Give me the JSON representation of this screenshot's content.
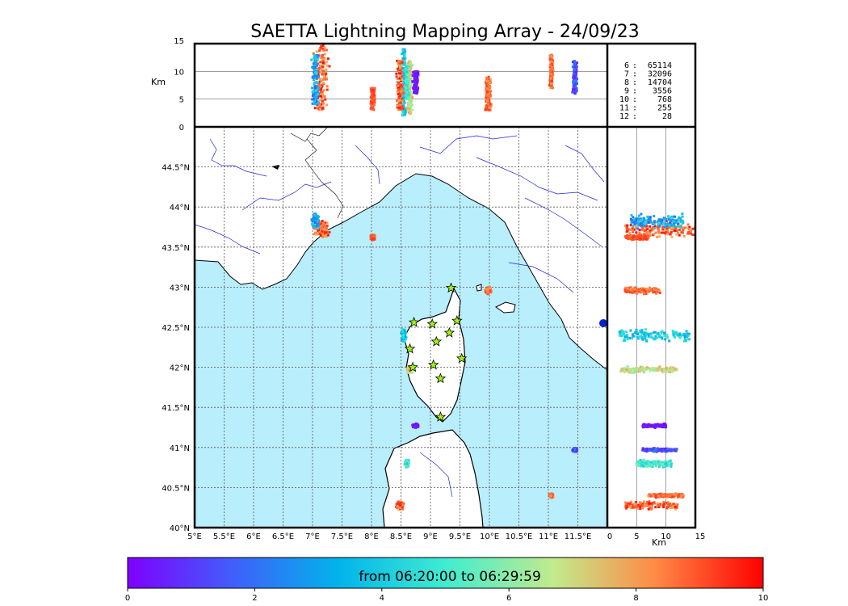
{
  "chart_data": {
    "type": "scatter",
    "title": "SAETTA Lightning Mapping Array - 24/09/23",
    "colorbar": {
      "label": "from 06:20:00 to 06:29:59",
      "ticks": [
        "0",
        "2",
        "4",
        "6",
        "8",
        "10"
      ],
      "range": [
        0,
        10
      ]
    },
    "altitude_panel": {
      "ylabel": "Km",
      "yticks": [
        "0",
        "5",
        "10",
        "15"
      ],
      "ylim": [
        0,
        15
      ]
    },
    "latitude_panel": {
      "xlabel": "Km",
      "xticks": [
        "0",
        "5",
        "10",
        "15"
      ],
      "xlim": [
        0,
        15
      ]
    },
    "map": {
      "xticks": [
        "5°E",
        "5.5°E",
        "6°E",
        "6.5°E",
        "7°E",
        "7.5°E",
        "8°E",
        "8.5°E",
        "9°E",
        "9.5°E",
        "10°E",
        "10.5°E",
        "11°E",
        "11.5°E"
      ],
      "yticks": [
        "40°N",
        "40.5°N",
        "41°N",
        "41.5°N",
        "42°N",
        "42.5°N",
        "43°N",
        "43.5°N",
        "44°N",
        "44.5°N"
      ],
      "lon_range": [
        5,
        12
      ],
      "lat_range": [
        40,
        45
      ],
      "grid": true
    },
    "station_counts": [
      {
        "stations": "6",
        "count": "65114",
        "highlight": false
      },
      {
        "stations": "7",
        "count": "32096",
        "highlight": true
      },
      {
        "stations": "8",
        "count": "14704",
        "highlight": false
      },
      {
        "stations": "9",
        "count": "3556",
        "highlight": false
      },
      {
        "stations": "10",
        "count": "768",
        "highlight": false
      },
      {
        "stations": "11",
        "count": "255",
        "highlight": false
      },
      {
        "stations": "12",
        "count": "28",
        "highlight": false
      }
    ],
    "stations": [
      [
        9.35,
        42.99
      ],
      [
        8.72,
        42.56
      ],
      [
        9.03,
        42.54
      ],
      [
        9.45,
        42.58
      ],
      [
        9.32,
        42.43
      ],
      [
        9.1,
        42.32
      ],
      [
        8.65,
        42.23
      ],
      [
        9.53,
        42.11
      ],
      [
        9.05,
        42.03
      ],
      [
        8.7,
        42.0
      ],
      [
        9.17,
        41.86
      ],
      [
        9.17,
        41.38
      ]
    ],
    "clusters": [
      {
        "lon": 7.15,
        "lat": 43.72,
        "lon_spread": 0.15,
        "lat_spread": 0.13,
        "alt": [
          3,
          15
        ],
        "t": [
          7.5,
          10
        ]
      },
      {
        "lon": 7.05,
        "lat": 43.82,
        "lon_spread": 0.08,
        "lat_spread": 0.12,
        "alt": [
          4,
          13
        ],
        "t": [
          1.5,
          4.5
        ]
      },
      {
        "lon": 8.02,
        "lat": 43.62,
        "lon_spread": 0.05,
        "lat_spread": 0.04,
        "alt": [
          3,
          7
        ],
        "t": [
          8.5,
          9.5
        ]
      },
      {
        "lon": 9.98,
        "lat": 42.96,
        "lon_spread": 0.06,
        "lat_spread": 0.05,
        "alt": [
          3,
          9
        ],
        "t": [
          8,
          9.5
        ]
      },
      {
        "lon": 8.55,
        "lat": 42.4,
        "lon_spread": 0.05,
        "lat_spread": 0.1,
        "alt": [
          2,
          14
        ],
        "t": [
          3,
          5
        ]
      },
      {
        "lon": 8.65,
        "lat": 41.97,
        "lon_spread": 0.06,
        "lat_spread": 0.05,
        "alt": [
          2,
          12
        ],
        "t": [
          6,
          8
        ]
      },
      {
        "lon": 8.75,
        "lat": 41.27,
        "lon_spread": 0.06,
        "lat_spread": 0.03,
        "alt": [
          6,
          10
        ],
        "t": [
          0,
          0.8
        ]
      },
      {
        "lon": 8.6,
        "lat": 40.8,
        "lon_spread": 0.04,
        "lat_spread": 0.06,
        "alt": [
          5,
          11
        ],
        "t": [
          4,
          6
        ]
      },
      {
        "lon": 8.48,
        "lat": 40.28,
        "lon_spread": 0.08,
        "lat_spread": 0.07,
        "alt": [
          3,
          12
        ],
        "t": [
          7.5,
          10
        ]
      },
      {
        "lon": 11.05,
        "lat": 40.4,
        "lon_spread": 0.04,
        "lat_spread": 0.03,
        "alt": [
          7,
          13
        ],
        "t": [
          8,
          9.5
        ]
      },
      {
        "lon": 11.45,
        "lat": 40.97,
        "lon_spread": 0.05,
        "lat_spread": 0.03,
        "alt": [
          6,
          12
        ],
        "t": [
          0.5,
          2.5
        ]
      }
    ]
  }
}
